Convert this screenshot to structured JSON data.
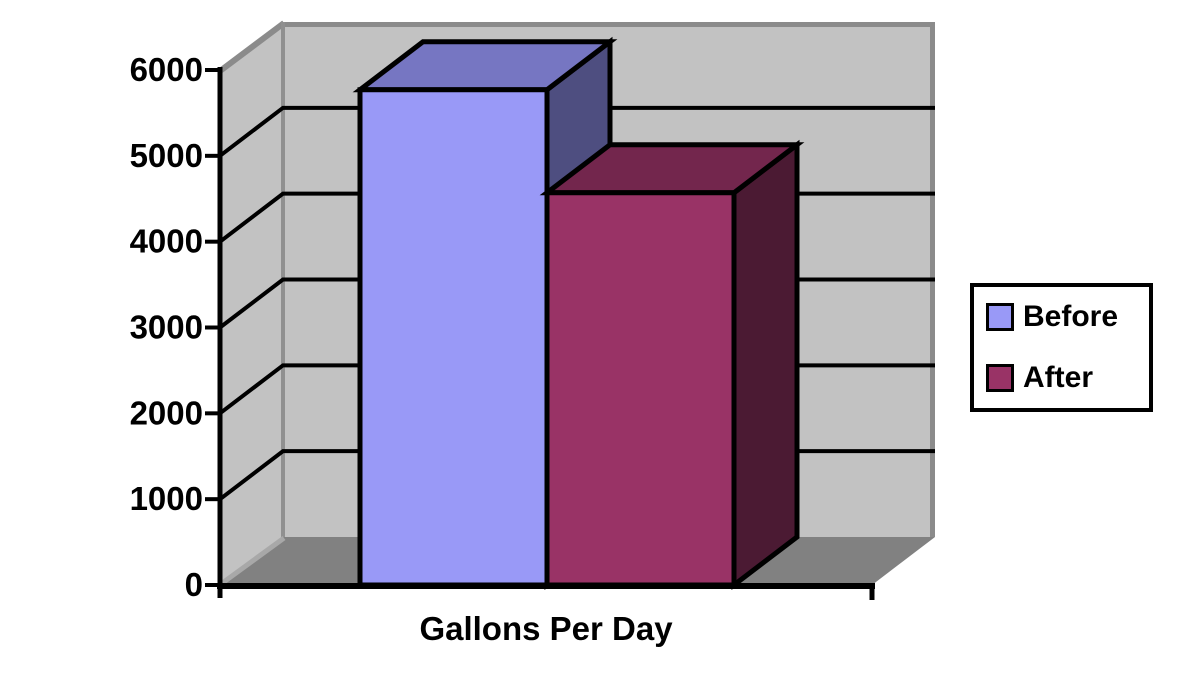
{
  "chart_data": {
    "type": "bar",
    "projection": "3d",
    "title": "",
    "xlabel": "Gallons Per Day",
    "ylabel": "",
    "categories": [
      "Gallons Per Day"
    ],
    "series": [
      {
        "name": "Before",
        "value": 5770,
        "color_front": "#9999F7",
        "color_top": "#7676C2",
        "color_side": "#4E4E80"
      },
      {
        "name": "After",
        "value": 4570,
        "color_front": "#993366",
        "color_top": "#73264D",
        "color_side": "#4B1A33"
      }
    ],
    "ylim": [
      0,
      6000
    ],
    "yticks": [
      0,
      1000,
      2000,
      3000,
      4000,
      5000,
      6000
    ],
    "grid": true,
    "legend_position": "right"
  },
  "colors": {
    "background": "#FFFFFF",
    "wall": "#C2C2C2",
    "wall_edge": "#8B8B8B",
    "wall_corner": "#909090",
    "floor": "#818181",
    "floor_edge_light": "#A8A8A8",
    "axis": "#000000",
    "gridline": "#000000",
    "text": "#000000"
  }
}
